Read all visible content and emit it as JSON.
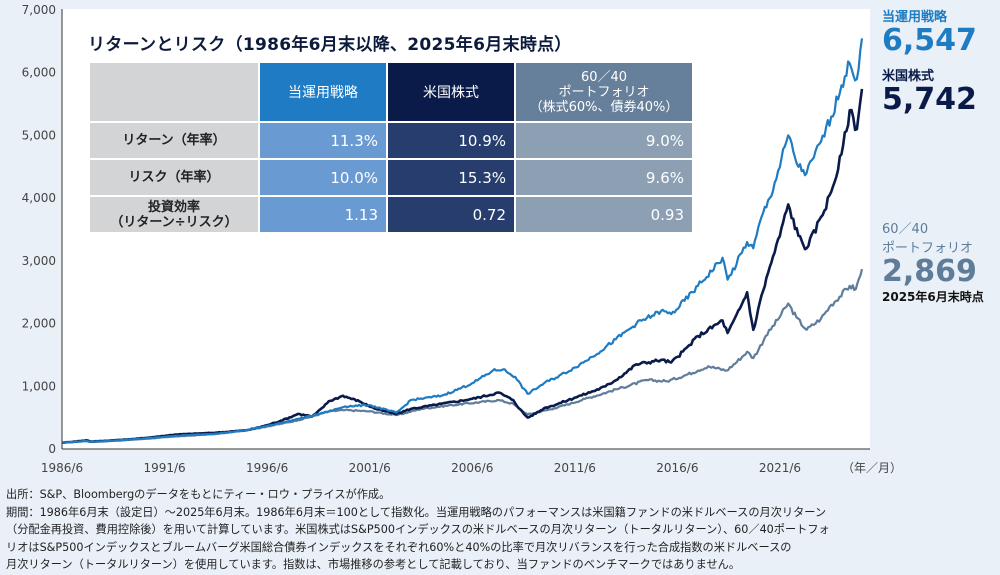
{
  "chart_data": {
    "type": "line",
    "title": "リターンとリスク（1986年6月末以降、2025年6月末時点）",
    "xlabel": "（年／月）",
    "ylabel": "",
    "ylim": [
      0,
      7000
    ],
    "xlim": [
      1986.5,
      2025.5
    ],
    "yticks": [
      0,
      1000,
      2000,
      3000,
      4000,
      5000,
      6000,
      7000
    ],
    "ytick_labels": [
      "0",
      "1,000",
      "2,000",
      "3,000",
      "4,000",
      "5,000",
      "6,000",
      "7,000"
    ],
    "xticks": [
      1986.5,
      1991.5,
      1996.5,
      2001.5,
      2006.5,
      2011.5,
      2016.5,
      2021.5
    ],
    "xtick_labels": [
      "1986/6",
      "1991/6",
      "1996/6",
      "2001/6",
      "2006/6",
      "2011/6",
      "2016/6",
      "2021/6"
    ],
    "grid": false,
    "series": [
      {
        "name": "60／40ポートフォリオ",
        "color": "#5f7c99",
        "x": [
          1986.5,
          1987.7,
          1987.9,
          1990.0,
          1992.0,
          1994.0,
          1995.5,
          1996.5,
          1998.0,
          1999.5,
          2000.3,
          2001.5,
          2002.8,
          2004.0,
          2005.5,
          2007.8,
          2008.5,
          2009.2,
          2010.5,
          2012.0,
          2013.5,
          2015.0,
          2016.0,
          2017.5,
          2018.0,
          2018.9,
          2019.9,
          2020.2,
          2020.8,
          2021.9,
          2022.3,
          2022.8,
          2023.5,
          2024.0,
          2024.9,
          2025.2,
          2025.5
        ],
        "values": [
          100,
          125,
          112,
          150,
          200,
          240,
          300,
          360,
          460,
          600,
          620,
          600,
          540,
          640,
          700,
          780,
          720,
          550,
          650,
          800,
          950,
          1100,
          1080,
          1250,
          1320,
          1250,
          1550,
          1450,
          1800,
          2320,
          2100,
          1900,
          2080,
          2300,
          2600,
          2550,
          2869
        ]
      },
      {
        "name": "米国株式",
        "color": "#0a1b4a",
        "x": [
          1986.5,
          1987.7,
          1987.9,
          1990.0,
          1992.0,
          1994.0,
          1995.5,
          1996.5,
          1998.0,
          1998.7,
          1999.5,
          2000.2,
          2001.0,
          2001.8,
          2002.8,
          2003.5,
          2005.0,
          2006.5,
          2007.8,
          2008.5,
          2009.2,
          2010.0,
          2011.5,
          2013.0,
          2014.5,
          2015.7,
          2016.2,
          2017.5,
          2018.7,
          2018.95,
          2019.9,
          2020.2,
          2020.6,
          2021.0,
          2021.9,
          2022.4,
          2022.8,
          2023.5,
          2024.0,
          2024.5,
          2024.9,
          2025.25,
          2025.5
        ],
        "values": [
          100,
          140,
          118,
          160,
          230,
          260,
          300,
          380,
          560,
          520,
          760,
          850,
          760,
          640,
          560,
          640,
          720,
          800,
          900,
          780,
          500,
          650,
          820,
          1000,
          1350,
          1420,
          1380,
          1800,
          2050,
          1850,
          2500,
          1900,
          2450,
          2900,
          3900,
          3400,
          3200,
          3700,
          4100,
          4700,
          5400,
          5100,
          5742
        ]
      },
      {
        "name": "当運用戦略",
        "color": "#1f7cc3",
        "x": [
          1986.5,
          1987.7,
          1987.9,
          1990.0,
          1992.0,
          1994.0,
          1995.5,
          1996.5,
          1998.0,
          1999.5,
          2000.3,
          2001.5,
          2002.8,
          2003.5,
          2005.0,
          2006.5,
          2007.5,
          2008.0,
          2008.6,
          2009.2,
          2010.0,
          2011.5,
          2012.0,
          2013.5,
          2014.5,
          2015.7,
          2016.2,
          2017.5,
          2018.7,
          2018.95,
          2019.9,
          2020.2,
          2020.6,
          2021.0,
          2021.9,
          2022.4,
          2022.8,
          2023.5,
          2024.0,
          2024.5,
          2024.9,
          2025.25,
          2025.5
        ],
        "values": [
          100,
          130,
          115,
          155,
          210,
          245,
          300,
          370,
          480,
          600,
          680,
          700,
          580,
          780,
          850,
          1050,
          1250,
          1270,
          1150,
          880,
          1050,
          1300,
          1400,
          1750,
          2000,
          2200,
          2150,
          2600,
          3050,
          2700,
          3300,
          3200,
          3700,
          4000,
          5000,
          4500,
          4400,
          4900,
          5300,
          5800,
          6150,
          5900,
          6547
        ]
      }
    ]
  },
  "table": {
    "headers": [
      "",
      "当運用戦略",
      "米国株式",
      "60／40\nポートフォリオ\n（株式60%、債券40%）"
    ],
    "header3_lines": [
      "60／40",
      "ポートフォリオ",
      "（株式60%、債券40%）"
    ],
    "rows": [
      {
        "label_lines": [
          "リターン（年率）"
        ],
        "values": [
          "11.3%",
          "10.9%",
          "9.0%"
        ]
      },
      {
        "label_lines": [
          "リスク（年率）"
        ],
        "values": [
          "10.0%",
          "15.3%",
          "9.6%"
        ]
      },
      {
        "label_lines": [
          "投資効率",
          "（リターン÷リスク）"
        ],
        "values": [
          "1.13",
          "0.72",
          "0.93"
        ]
      }
    ]
  },
  "end_labels": {
    "strategy": {
      "label": "当運用戦略",
      "value": "6,547",
      "color": "#1f7cc3"
    },
    "us_stocks": {
      "label": "米国株式",
      "value": "5,742",
      "color": "#0a1b4a"
    },
    "portfolio": {
      "label_line1": "60／40",
      "label_line2": "ポートフォリオ",
      "value": "2,869",
      "color": "#5f7c99"
    },
    "as_of": "2025年6月末時点"
  },
  "footnote": [
    "出所：S&P、Bloombergのデータをもとにティー・ロウ・プライスが作成。",
    "期間：1986年6月末（設定日）～2025年6月末。1986年6月末＝100として指数化。当運用戦略のパフォーマンスは米国籍ファンドの米ドルベースの月次リターン",
    "（分配金再投資、費用控除後）を用いて計算しています。米国株式はS&P500インデックスの米ドルベースの月次リターン（トータルリターン）、60／40ポートフォ",
    "リオはS&P500インデックスとブルームバーグ米国総合債券インデックスをそれぞれ60%と40%の比率で月次リバランスを行った合成指数の米ドルベースの",
    "月次リターン（トータルリターン）を使用しています。指数は、市場推移の参考として記載しており、当ファンドのベンチマークではありません。"
  ]
}
